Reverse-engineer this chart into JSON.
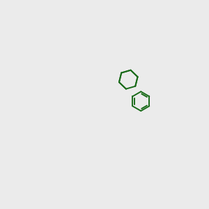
{
  "bg_color": "#ebebeb",
  "bond_color": "#1a6b1a",
  "o_color": "#ff0000",
  "n_color": "#0000cc",
  "font_size": 7,
  "lw": 1.3
}
